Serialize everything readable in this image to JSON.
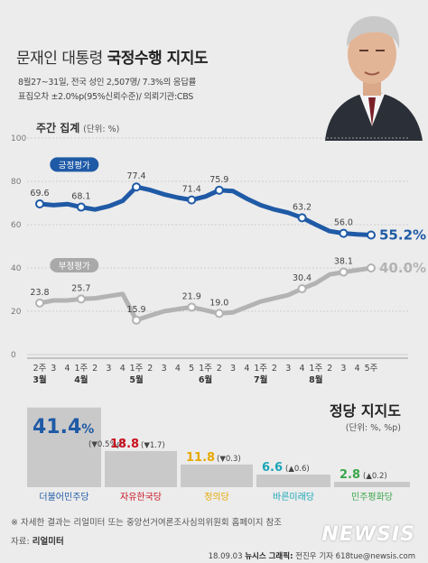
{
  "header": {
    "title_prefix": "문재인 대통령",
    "title_main": "국정수행 지지도",
    "survey_line1": "8월27~31일, 전국 성인 2,507명/ 7.3%의 응답률",
    "survey_line2": "표집오차 ±2.0%p(95%신뢰수준)/ 의뢰기관:CBS"
  },
  "weekly": {
    "label": "주간 집계",
    "unit": "(단위: %)"
  },
  "chart_data": [
    {
      "type": "line",
      "ylim": [
        0,
        100
      ],
      "yticks": [
        0,
        20,
        40,
        60,
        80,
        100
      ],
      "x_ticks": [
        "2주",
        "3",
        "4",
        "1주",
        "2",
        "3",
        "4",
        "1주",
        "2",
        "3",
        "4",
        "5",
        "1주",
        "2",
        "3",
        "4",
        "1주",
        "2",
        "3",
        "4",
        "1주",
        "2",
        "3",
        "4",
        "5주"
      ],
      "month_labels": [
        {
          "label": "3월",
          "index": 0
        },
        {
          "label": "4월",
          "index": 3
        },
        {
          "label": "5월",
          "index": 7
        },
        {
          "label": "6월",
          "index": 12
        },
        {
          "label": "7월",
          "index": 16
        },
        {
          "label": "8월",
          "index": 20
        }
      ],
      "series": [
        {
          "name": "긍정평가",
          "color": "#1f5aa6",
          "values": [
            69.6,
            69.0,
            69.5,
            68.1,
            67.0,
            68.5,
            71.0,
            77.4,
            76.0,
            74.0,
            72.5,
            71.4,
            73.0,
            75.9,
            75.5,
            72.0,
            69.0,
            67.0,
            65.5,
            63.2,
            60.0,
            57.0,
            56.0,
            55.5,
            55.2
          ],
          "labeled": [
            {
              "index": 0,
              "text": "69.6"
            },
            {
              "index": 3,
              "text": "68.1"
            },
            {
              "index": 7,
              "text": "77.4"
            },
            {
              "index": 11,
              "text": "71.4"
            },
            {
              "index": 13,
              "text": "75.9"
            },
            {
              "index": 19,
              "text": "63.2"
            },
            {
              "index": 22,
              "text": "56.0"
            }
          ],
          "last_label": "55.2%"
        },
        {
          "name": "부정평가",
          "color": "#b3b3b3",
          "values": [
            23.8,
            25.0,
            25.0,
            25.7,
            26.0,
            27.0,
            28.0,
            15.9,
            18.0,
            20.0,
            21.0,
            21.9,
            20.5,
            19.0,
            19.5,
            22.0,
            24.5,
            26.0,
            27.5,
            30.4,
            33.0,
            37.0,
            38.1,
            39.0,
            40.0
          ],
          "labeled": [
            {
              "index": 0,
              "text": "23.8"
            },
            {
              "index": 3,
              "text": "25.7"
            },
            {
              "index": 7,
              "text": "15.9"
            },
            {
              "index": 11,
              "text": "21.9"
            },
            {
              "index": 13,
              "text": "19.0"
            },
            {
              "index": 19,
              "text": "30.4"
            },
            {
              "index": 22,
              "text": "38.1"
            }
          ],
          "last_label": "40.0%"
        }
      ]
    },
    {
      "type": "bar",
      "title": "정당 지지도",
      "unit": "(단위: %, %p)",
      "ylim": [
        0,
        45
      ],
      "categories": [
        "더불어민주당",
        "자유한국당",
        "정의당",
        "바른미래당",
        "민주평화당"
      ],
      "values": [
        41.4,
        18.8,
        11.8,
        6.6,
        2.8
      ],
      "value_labels": [
        "41.4",
        "18.8",
        "11.8",
        "6.6",
        "2.8"
      ],
      "change_labels": [
        "(▼0.5%p)",
        "(▼1.7)",
        "(▼0.3)",
        "(▲0.6)",
        "(▲0.2)"
      ],
      "colors": [
        "#1f5aa6",
        "#c8101e",
        "#e6a800",
        "#1aa6b7",
        "#3aa64a"
      ]
    }
  ],
  "footer": {
    "footnote": "※ 자세한 결과는 리얼미터 또는 중앙선거여론조사심의위원회 홈페이지 참조",
    "source_prefix": "자료:",
    "source_name": "리얼미터",
    "credit_date": "18.09.03",
    "credit_agency": "뉴시스 그래픽:",
    "credit_author": "전진우 기자 618tue@newsis.com",
    "logo": "NEWSIS"
  }
}
